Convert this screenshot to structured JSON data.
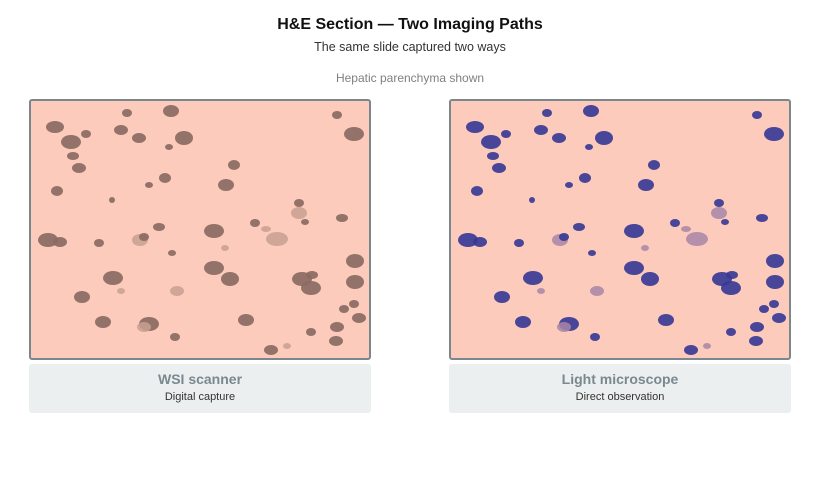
{
  "header": {
    "title": "H&E Section — Two Imaging Paths",
    "subtitle": "The same slide captured two ways",
    "note": "Hepatic parenchyma shown"
  },
  "panels": [
    {
      "label": "WSI scanner",
      "description": "Digital capture",
      "background_color": "#fdcbbb",
      "nucleus_color": "#8a6a62",
      "faint_nucleus_color": "#c8a092"
    },
    {
      "label": "Light microscope",
      "description": "Direct observation",
      "background_color": "#fdcbbb",
      "nucleus_color": "#3a3a96",
      "faint_nucleus_color": "#a886a8"
    }
  ],
  "colors": {
    "panel_border": "#7b878c",
    "caption_background": "#eceff0",
    "caption_title": "#7a8890"
  }
}
